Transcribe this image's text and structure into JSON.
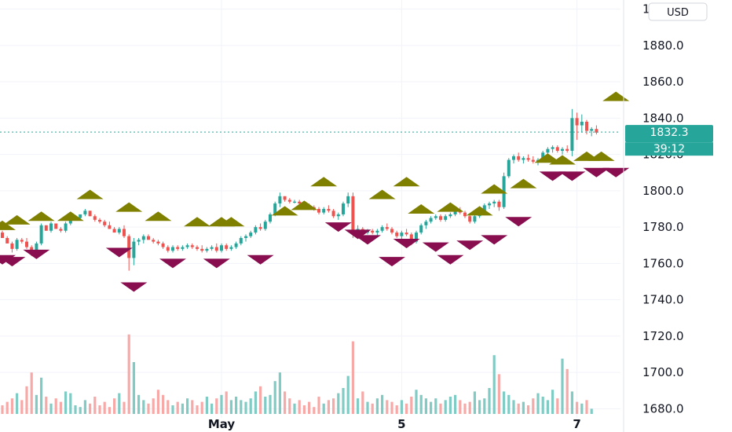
{
  "chart_data": {
    "type": "candlestick",
    "currency": "USD",
    "y_ticks": [
      1680.0,
      1700.0,
      1720.0,
      1740.0,
      1760.0,
      1780.0,
      1800.0,
      1820.0,
      1840.0,
      1860.0,
      1880.0,
      1900.0
    ],
    "ylim": [
      1675,
      1905
    ],
    "x_ticks": [
      {
        "label": "May",
        "index": 45
      },
      {
        "label": "5",
        "index": 82
      },
      {
        "label": "7",
        "index": 118
      }
    ],
    "last_price": 1832.3,
    "countdown": "39:12",
    "colors": {
      "up": "#26a69a",
      "down": "#ef5350",
      "vol_up": "#80cbc4",
      "vol_down": "#f7a9a7",
      "marker_up": "#808000",
      "marker_down": "#880e4f",
      "grid": "#f0f3fa",
      "badge": "#26a69a"
    },
    "ohlc": [
      [
        1777,
        1778,
        1774,
        1774
      ],
      [
        1774,
        1775,
        1771,
        1771
      ],
      [
        1771,
        1772,
        1766,
        1768
      ],
      [
        1768,
        1774,
        1767,
        1773
      ],
      [
        1773,
        1774,
        1771,
        1772
      ],
      [
        1772,
        1774,
        1768,
        1769
      ],
      [
        1769,
        1770,
        1764,
        1765
      ],
      [
        1765,
        1772,
        1764,
        1771
      ],
      [
        1771,
        1782,
        1770,
        1781
      ],
      [
        1781,
        1781,
        1778,
        1778
      ],
      [
        1778,
        1783,
        1777,
        1782
      ],
      [
        1782,
        1782,
        1779,
        1779
      ],
      [
        1779,
        1780,
        1777,
        1778
      ],
      [
        1778,
        1783,
        1777,
        1782
      ],
      [
        1782,
        1786,
        1781,
        1785
      ],
      [
        1785,
        1786,
        1784,
        1785
      ],
      [
        1785,
        1787,
        1784,
        1787
      ],
      [
        1787,
        1790,
        1786,
        1789
      ],
      [
        1789,
        1789,
        1786,
        1786
      ],
      [
        1786,
        1787,
        1783,
        1784
      ],
      [
        1784,
        1785,
        1782,
        1783
      ],
      [
        1783,
        1784,
        1780,
        1781
      ],
      [
        1781,
        1783,
        1779,
        1779
      ],
      [
        1779,
        1780,
        1777,
        1777
      ],
      [
        1777,
        1780,
        1776,
        1779
      ],
      [
        1779,
        1781,
        1774,
        1775
      ],
      [
        1775,
        1776,
        1756,
        1763
      ],
      [
        1763,
        1774,
        1759,
        1772
      ],
      [
        1772,
        1774,
        1770,
        1773
      ],
      [
        1773,
        1776,
        1771,
        1775
      ],
      [
        1775,
        1776,
        1773,
        1773
      ],
      [
        1773,
        1774,
        1771,
        1772
      ],
      [
        1772,
        1773,
        1770,
        1771
      ],
      [
        1771,
        1772,
        1768,
        1769
      ],
      [
        1769,
        1770,
        1766,
        1767
      ],
      [
        1767,
        1770,
        1766,
        1769
      ],
      [
        1769,
        1770,
        1767,
        1768
      ],
      [
        1768,
        1770,
        1767,
        1769
      ],
      [
        1769,
        1771,
        1768,
        1770
      ],
      [
        1770,
        1771,
        1768,
        1769
      ],
      [
        1769,
        1770,
        1767,
        1768
      ],
      [
        1768,
        1770,
        1766,
        1767
      ],
      [
        1767,
        1769,
        1766,
        1768
      ],
      [
        1768,
        1770,
        1767,
        1769
      ],
      [
        1769,
        1771,
        1766,
        1767
      ],
      [
        1767,
        1771,
        1766,
        1770
      ],
      [
        1770,
        1771,
        1767,
        1768
      ],
      [
        1768,
        1770,
        1767,
        1769
      ],
      [
        1769,
        1772,
        1768,
        1771
      ],
      [
        1771,
        1775,
        1770,
        1774
      ],
      [
        1774,
        1776,
        1772,
        1775
      ],
      [
        1775,
        1778,
        1774,
        1777
      ],
      [
        1777,
        1781,
        1776,
        1780
      ],
      [
        1780,
        1782,
        1778,
        1779
      ],
      [
        1779,
        1784,
        1778,
        1783
      ],
      [
        1783,
        1788,
        1782,
        1787
      ],
      [
        1787,
        1794,
        1786,
        1793
      ],
      [
        1793,
        1799,
        1791,
        1797
      ],
      [
        1797,
        1797,
        1794,
        1795
      ],
      [
        1795,
        1796,
        1793,
        1794
      ],
      [
        1794,
        1795,
        1793,
        1794
      ],
      [
        1794,
        1795,
        1792,
        1793
      ],
      [
        1793,
        1794,
        1791,
        1792
      ],
      [
        1792,
        1793,
        1790,
        1791
      ],
      [
        1791,
        1792,
        1789,
        1790
      ],
      [
        1790,
        1791,
        1787,
        1788
      ],
      [
        1788,
        1791,
        1787,
        1790
      ],
      [
        1790,
        1792,
        1788,
        1789
      ],
      [
        1789,
        1790,
        1785,
        1786
      ],
      [
        1786,
        1788,
        1784,
        1787
      ],
      [
        1787,
        1794,
        1786,
        1793
      ],
      [
        1793,
        1799,
        1791,
        1797
      ],
      [
        1797,
        1799,
        1774,
        1778
      ],
      [
        1778,
        1781,
        1776,
        1779
      ],
      [
        1779,
        1780,
        1776,
        1777
      ],
      [
        1777,
        1779,
        1776,
        1778
      ],
      [
        1778,
        1779,
        1776,
        1777
      ],
      [
        1777,
        1779,
        1775,
        1778
      ],
      [
        1778,
        1781,
        1777,
        1780
      ],
      [
        1780,
        1782,
        1778,
        1779
      ],
      [
        1779,
        1780,
        1776,
        1777
      ],
      [
        1777,
        1778,
        1774,
        1775
      ],
      [
        1775,
        1778,
        1773,
        1777
      ],
      [
        1777,
        1779,
        1775,
        1776
      ],
      [
        1776,
        1777,
        1770,
        1772
      ],
      [
        1772,
        1778,
        1771,
        1777
      ],
      [
        1777,
        1782,
        1776,
        1781
      ],
      [
        1781,
        1784,
        1779,
        1783
      ],
      [
        1783,
        1786,
        1782,
        1785
      ],
      [
        1785,
        1787,
        1784,
        1786
      ],
      [
        1786,
        1787,
        1783,
        1784
      ],
      [
        1784,
        1787,
        1783,
        1786
      ],
      [
        1786,
        1788,
        1785,
        1787
      ],
      [
        1787,
        1790,
        1786,
        1789
      ],
      [
        1789,
        1791,
        1787,
        1788
      ],
      [
        1788,
        1789,
        1785,
        1786
      ],
      [
        1786,
        1787,
        1782,
        1783
      ],
      [
        1783,
        1787,
        1782,
        1786
      ],
      [
        1786,
        1790,
        1785,
        1789
      ],
      [
        1789,
        1793,
        1788,
        1792
      ],
      [
        1792,
        1794,
        1790,
        1793
      ],
      [
        1793,
        1795,
        1791,
        1794
      ],
      [
        1794,
        1795,
        1789,
        1791
      ],
      [
        1791,
        1810,
        1790,
        1808
      ],
      [
        1808,
        1818,
        1807,
        1817
      ],
      [
        1817,
        1820,
        1815,
        1819
      ],
      [
        1819,
        1821,
        1816,
        1817
      ],
      [
        1817,
        1819,
        1815,
        1818
      ],
      [
        1818,
        1820,
        1816,
        1817
      ],
      [
        1817,
        1819,
        1815,
        1816
      ],
      [
        1816,
        1818,
        1814,
        1817
      ],
      [
        1817,
        1822,
        1816,
        1821
      ],
      [
        1821,
        1824,
        1820,
        1823
      ],
      [
        1823,
        1825,
        1821,
        1824
      ],
      [
        1824,
        1825,
        1821,
        1822
      ],
      [
        1822,
        1824,
        1820,
        1823
      ],
      [
        1823,
        1825,
        1821,
        1822
      ],
      [
        1822,
        1845,
        1819,
        1840
      ],
      [
        1840,
        1843,
        1828,
        1836
      ],
      [
        1836,
        1842,
        1832,
        1838
      ],
      [
        1838,
        1839,
        1831,
        1833
      ],
      [
        1833,
        1835,
        1830,
        1834
      ],
      [
        1834,
        1836,
        1831,
        1832
      ]
    ],
    "volume": [
      5,
      7,
      9,
      12,
      8,
      16,
      24,
      11,
      21,
      10,
      6,
      9,
      7,
      13,
      12,
      5,
      4,
      8,
      6,
      10,
      5,
      7,
      4,
      9,
      12,
      7,
      46,
      30,
      11,
      8,
      6,
      9,
      14,
      11,
      8,
      5,
      7,
      6,
      9,
      8,
      5,
      7,
      10,
      6,
      9,
      11,
      13,
      8,
      10,
      8,
      7,
      9,
      13,
      16,
      10,
      11,
      19,
      24,
      13,
      9,
      6,
      8,
      5,
      7,
      4,
      10,
      6,
      8,
      9,
      12,
      15,
      22,
      42,
      9,
      13,
      7,
      6,
      9,
      11,
      8,
      7,
      5,
      8,
      6,
      10,
      14,
      11,
      9,
      7,
      9,
      6,
      8,
      10,
      11,
      8,
      6,
      7,
      13,
      8,
      9,
      15,
      34,
      23,
      13,
      11,
      8,
      6,
      7,
      5,
      9,
      12,
      10,
      8,
      14,
      9,
      32,
      26,
      13,
      7,
      6,
      8,
      3
    ],
    "buy_signals": [
      [
        0,
        1781
      ],
      [
        3,
        1784
      ],
      [
        8,
        1786
      ],
      [
        14,
        1786
      ],
      [
        18,
        1798
      ],
      [
        26,
        1791
      ],
      [
        32,
        1786
      ],
      [
        40,
        1783
      ],
      [
        45,
        1783
      ],
      [
        47,
        1783
      ],
      [
        58,
        1789
      ],
      [
        62,
        1792
      ],
      [
        66,
        1805
      ],
      [
        78,
        1798
      ],
      [
        83,
        1805
      ],
      [
        86,
        1790
      ],
      [
        92,
        1791
      ],
      [
        98,
        1789
      ],
      [
        101,
        1801
      ],
      [
        107,
        1804
      ],
      [
        112,
        1818
      ],
      [
        115,
        1817
      ],
      [
        120,
        1819
      ],
      [
        123,
        1819
      ],
      [
        126,
        1852
      ]
    ],
    "sell_signals": [
      [
        0,
        1762
      ],
      [
        2,
        1761
      ],
      [
        7,
        1765
      ],
      [
        24,
        1766
      ],
      [
        27,
        1747
      ],
      [
        35,
        1760
      ],
      [
        44,
        1760
      ],
      [
        53,
        1762
      ],
      [
        69,
        1780
      ],
      [
        73,
        1776
      ],
      [
        75,
        1773
      ],
      [
        80,
        1761
      ],
      [
        83,
        1771
      ],
      [
        89,
        1769
      ],
      [
        92,
        1762
      ],
      [
        96,
        1770
      ],
      [
        101,
        1773
      ],
      [
        106,
        1783
      ],
      [
        113,
        1808
      ],
      [
        117,
        1808
      ],
      [
        122,
        1810
      ],
      [
        126,
        1810
      ]
    ]
  }
}
